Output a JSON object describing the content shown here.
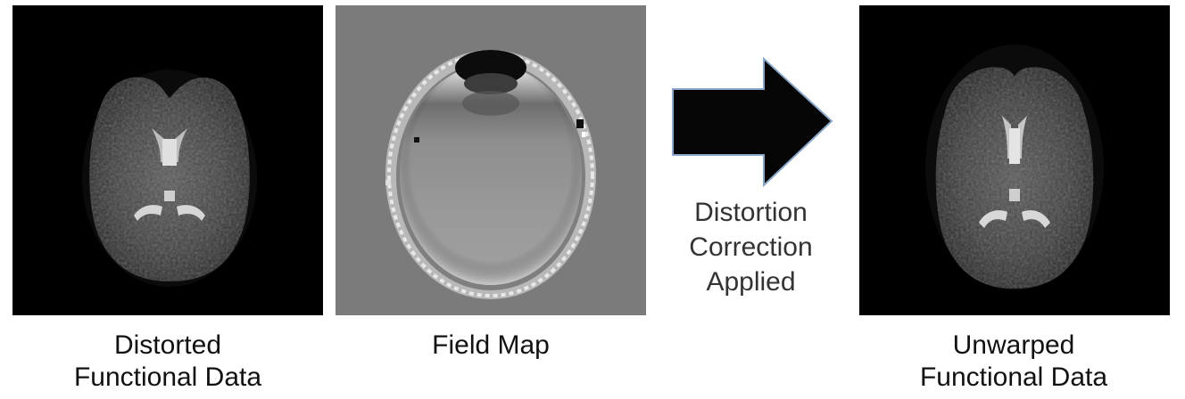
{
  "panels": {
    "distorted": {
      "caption_line1": "Distorted",
      "caption_line2": "Functional Data"
    },
    "field_map": {
      "caption": "Field Map"
    },
    "unwarped": {
      "caption_line1": "Unwarped",
      "caption_line2": "Functional Data"
    }
  },
  "arrow": {
    "label_line1": "Distortion",
    "label_line2": "Correction",
    "label_line3": "Applied"
  },
  "colors": {
    "background": "#ffffff",
    "scan_background": "#000000",
    "fieldmap_background": "#7b7b7b",
    "arrow_fill": "#050505",
    "arrow_stroke": "#8aa6c8"
  }
}
